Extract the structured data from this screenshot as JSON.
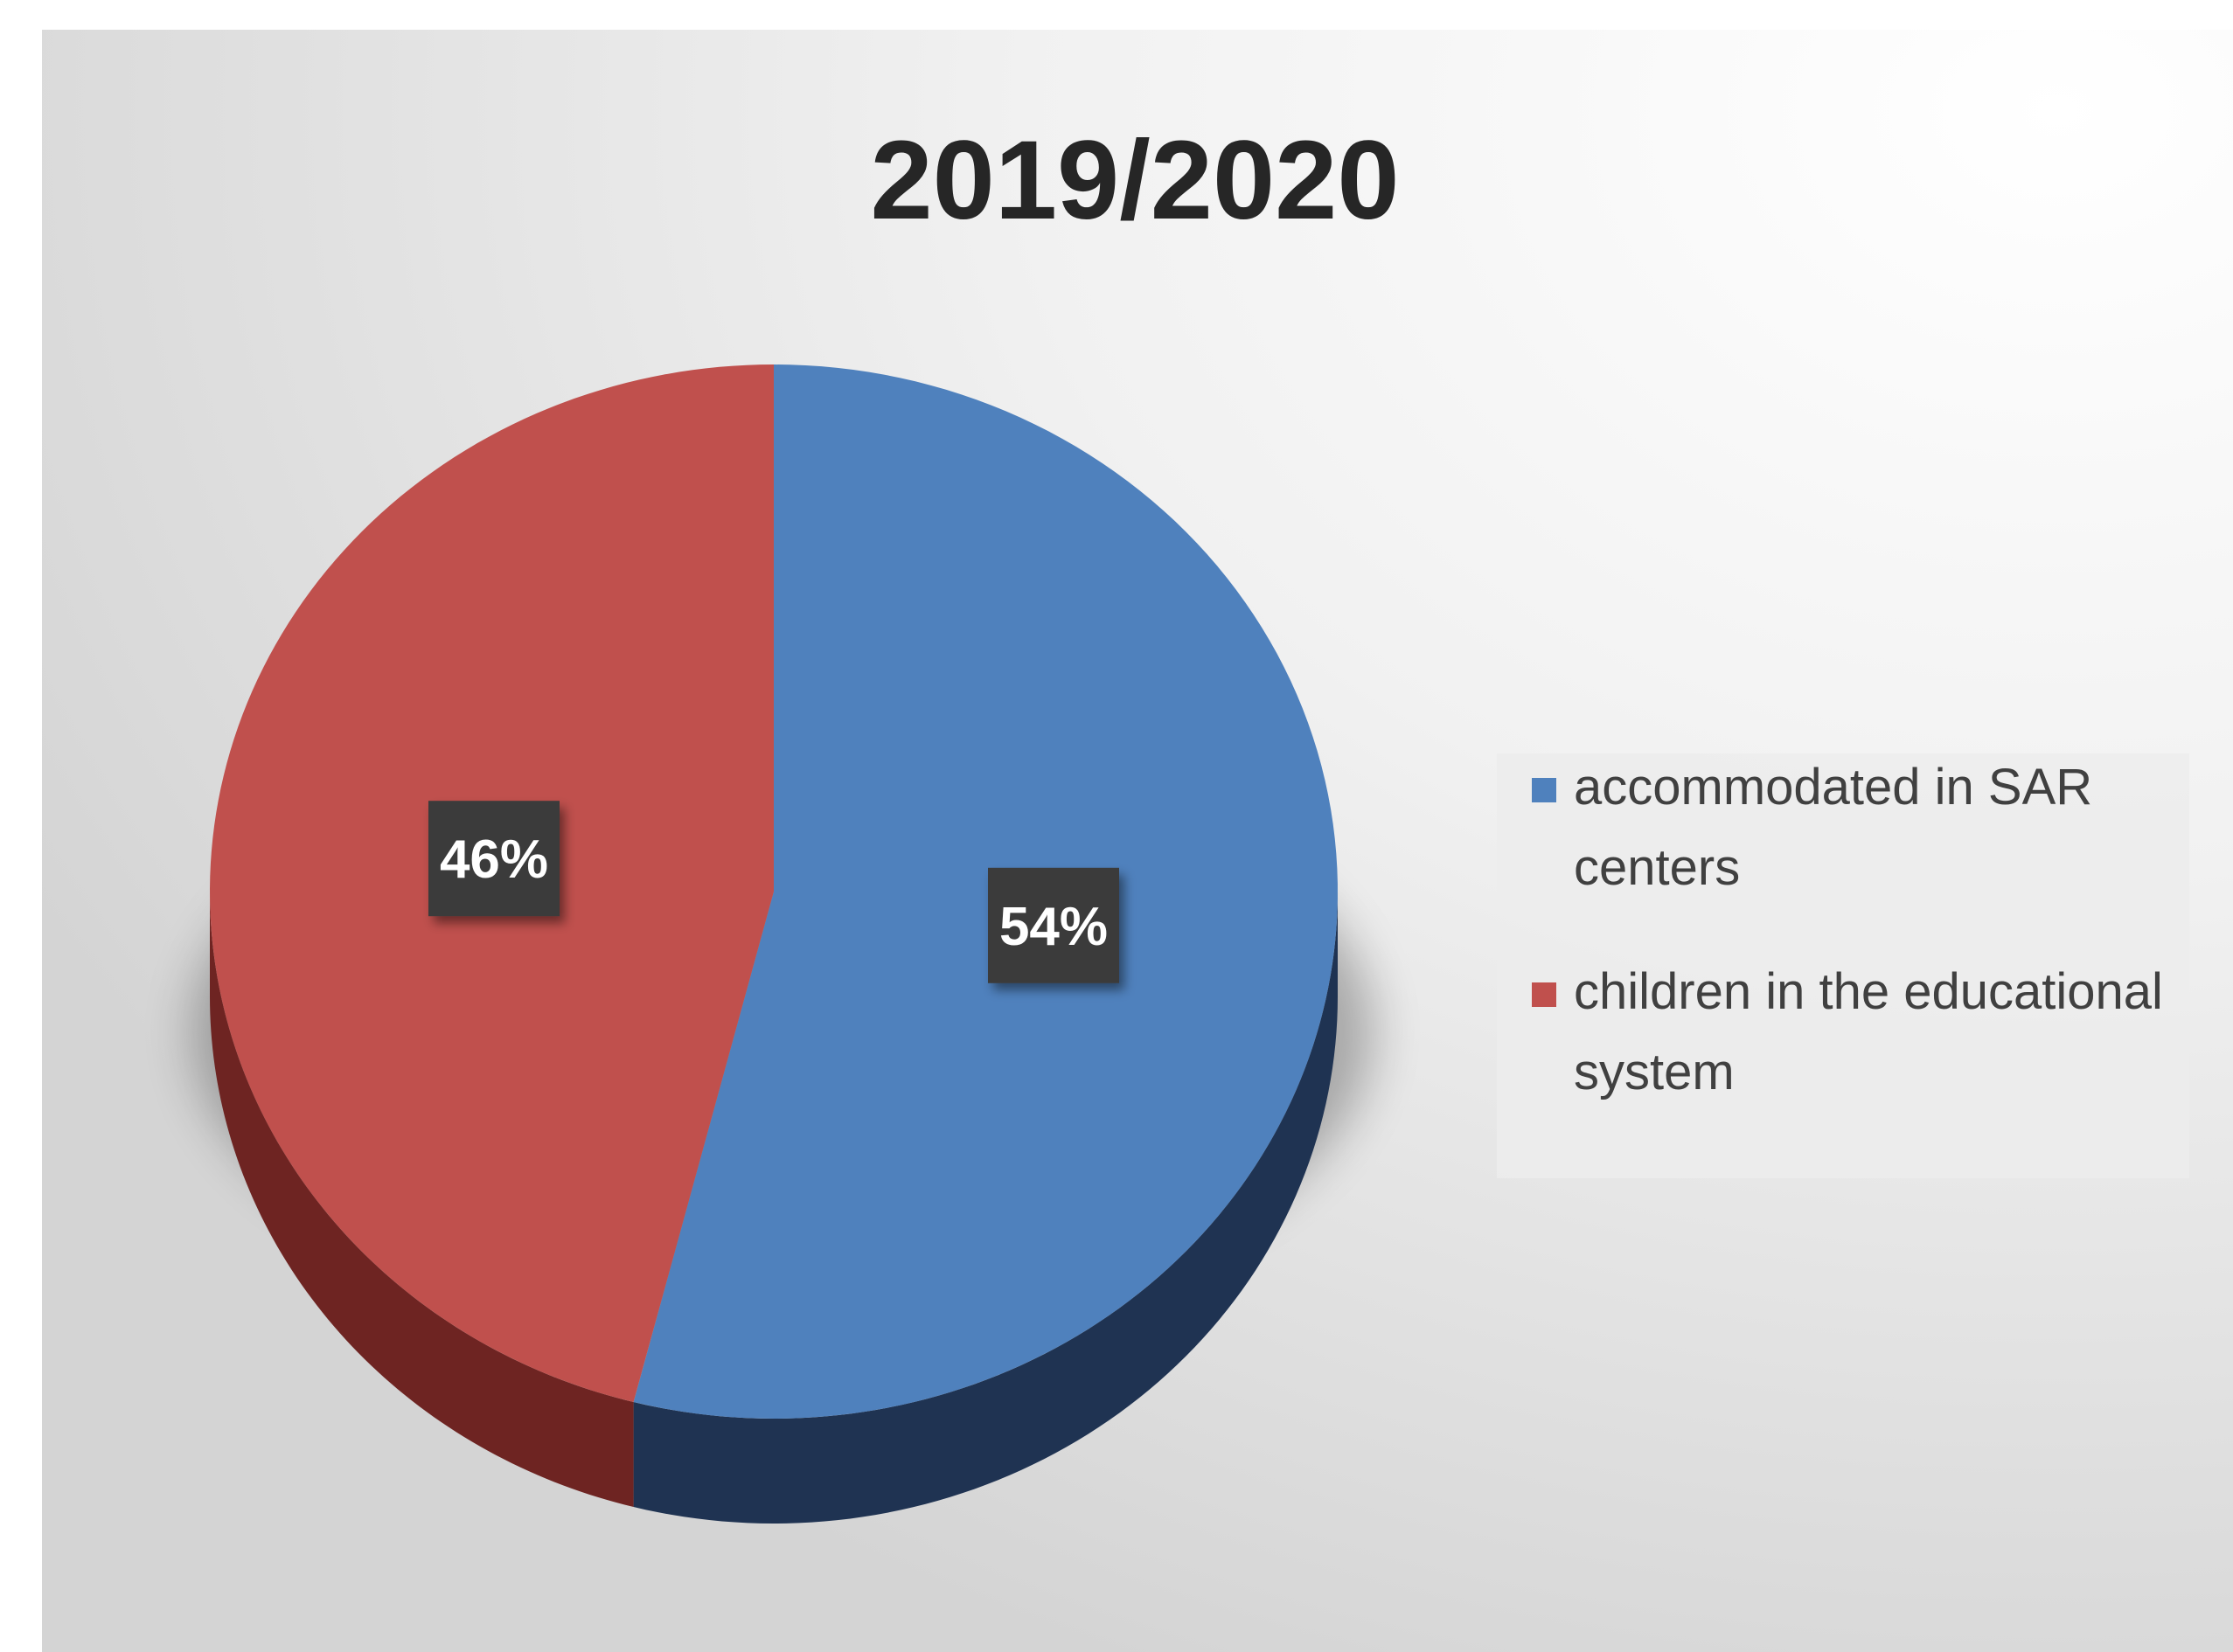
{
  "chart_data": {
    "type": "pie",
    "title": "2019/2020",
    "slices": [
      {
        "label": "accommodated in SAR centers",
        "value": 54,
        "display": "54%",
        "color": "#4f81bd",
        "side_color": "#1f3352"
      },
      {
        "label": "children in the educational system",
        "value": 46,
        "display": "46%",
        "color": "#c0504d",
        "side_color": "#6e2422"
      }
    ],
    "legend": {
      "position": "right",
      "items": [
        {
          "lines": [
            "accommodated in SAR",
            "centers"
          ],
          "color": "#4f81bd"
        },
        {
          "lines": [
            "children in the educational",
            "system"
          ],
          "color": "#c0504d"
        }
      ]
    },
    "style": "3d"
  }
}
